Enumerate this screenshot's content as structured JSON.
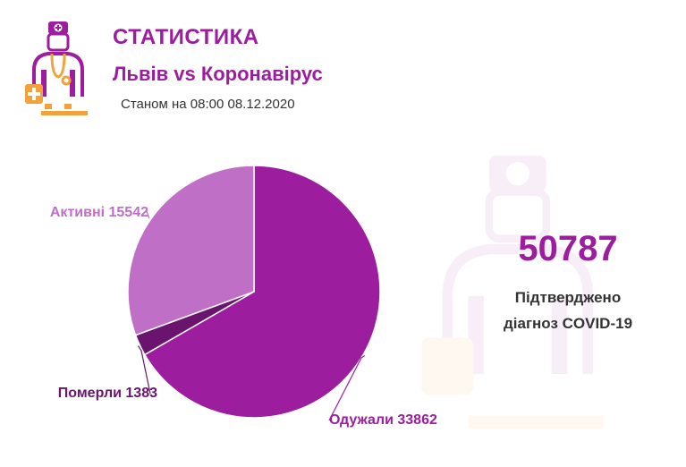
{
  "header": {
    "title": "СТАТИСТИКА",
    "subtitle": "Львів vs Коронавірус",
    "as_of": "Станом на 08:00 08.12.2020"
  },
  "summary": {
    "total": "50787",
    "caption_line1": "Підтверджено",
    "caption_line2": "діагноз COVID-19"
  },
  "colors": {
    "accent": "#9c1d9e",
    "recovered": "#9c1d9e",
    "active": "#bf6fc5",
    "died": "#6a1470",
    "logo_orange": "#f2a23a"
  },
  "icons": {
    "logo": "doctor-icon",
    "watermark": "doctor-icon"
  },
  "chart_data": {
    "type": "pie",
    "start_angle_deg": 0,
    "direction": "clockwise",
    "slices": [
      {
        "label": "Одужали",
        "value": 33862,
        "text": "Одужали 33862",
        "color": "#9c1d9e"
      },
      {
        "label": "Померли",
        "value": 1383,
        "text": "Померли 1383",
        "color": "#6a1470"
      },
      {
        "label": "Активні",
        "value": 15542,
        "text": "Активні 15542",
        "color": "#bf6fc5"
      }
    ]
  }
}
